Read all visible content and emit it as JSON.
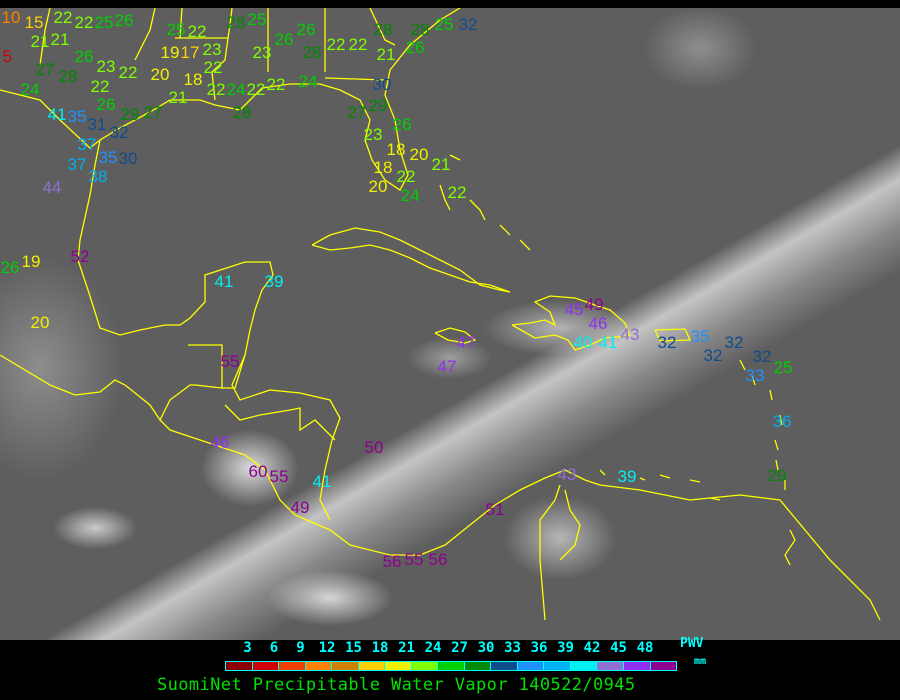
{
  "legend": {
    "ticks": [
      "3",
      "6",
      "9",
      "12",
      "15",
      "18",
      "21",
      "24",
      "27",
      "30",
      "33",
      "36",
      "39",
      "42",
      "45",
      "48"
    ],
    "colors": [
      "#8b0000",
      "#d00000",
      "#f04000",
      "#ff8000",
      "#d08000",
      "#ffd000",
      "#f0f000",
      "#80ff00",
      "#00d000",
      "#008800",
      "#104c8c",
      "#2090ff",
      "#00b0f0",
      "#00f0f0",
      "#9070d0",
      "#9030f0",
      "#900090"
    ],
    "quantity": "PWV",
    "unit": "mm"
  },
  "title": "SuomiNet Precipitable Water Vapor 140522/0945",
  "coastline_color": "#ffff00",
  "stations": [
    10,
    15,
    21,
    22,
    22,
    25,
    26,
    21,
    26,
    27,
    28,
    23,
    22,
    24,
    22,
    26,
    20,
    19,
    17,
    23,
    22,
    18,
    21,
    22,
    24,
    22,
    28,
    22,
    24,
    28,
    25,
    26,
    26,
    28,
    23,
    22,
    22,
    21,
    28,
    28,
    26,
    25,
    22,
    25,
    30,
    27,
    29,
    23,
    26,
    18,
    20,
    18,
    20,
    22,
    24,
    21,
    22,
    5,
    41,
    35,
    31,
    37,
    32,
    37,
    35,
    30,
    38,
    29,
    27,
    44,
    26,
    19,
    52,
    20,
    41,
    39,
    55,
    46,
    60,
    55,
    41,
    49,
    50,
    47,
    47,
    45,
    49,
    46,
    40,
    41,
    43,
    32,
    35,
    32,
    32,
    32,
    33,
    25,
    36,
    29,
    43,
    39,
    51,
    56,
    55,
    56,
    32
  ]
}
